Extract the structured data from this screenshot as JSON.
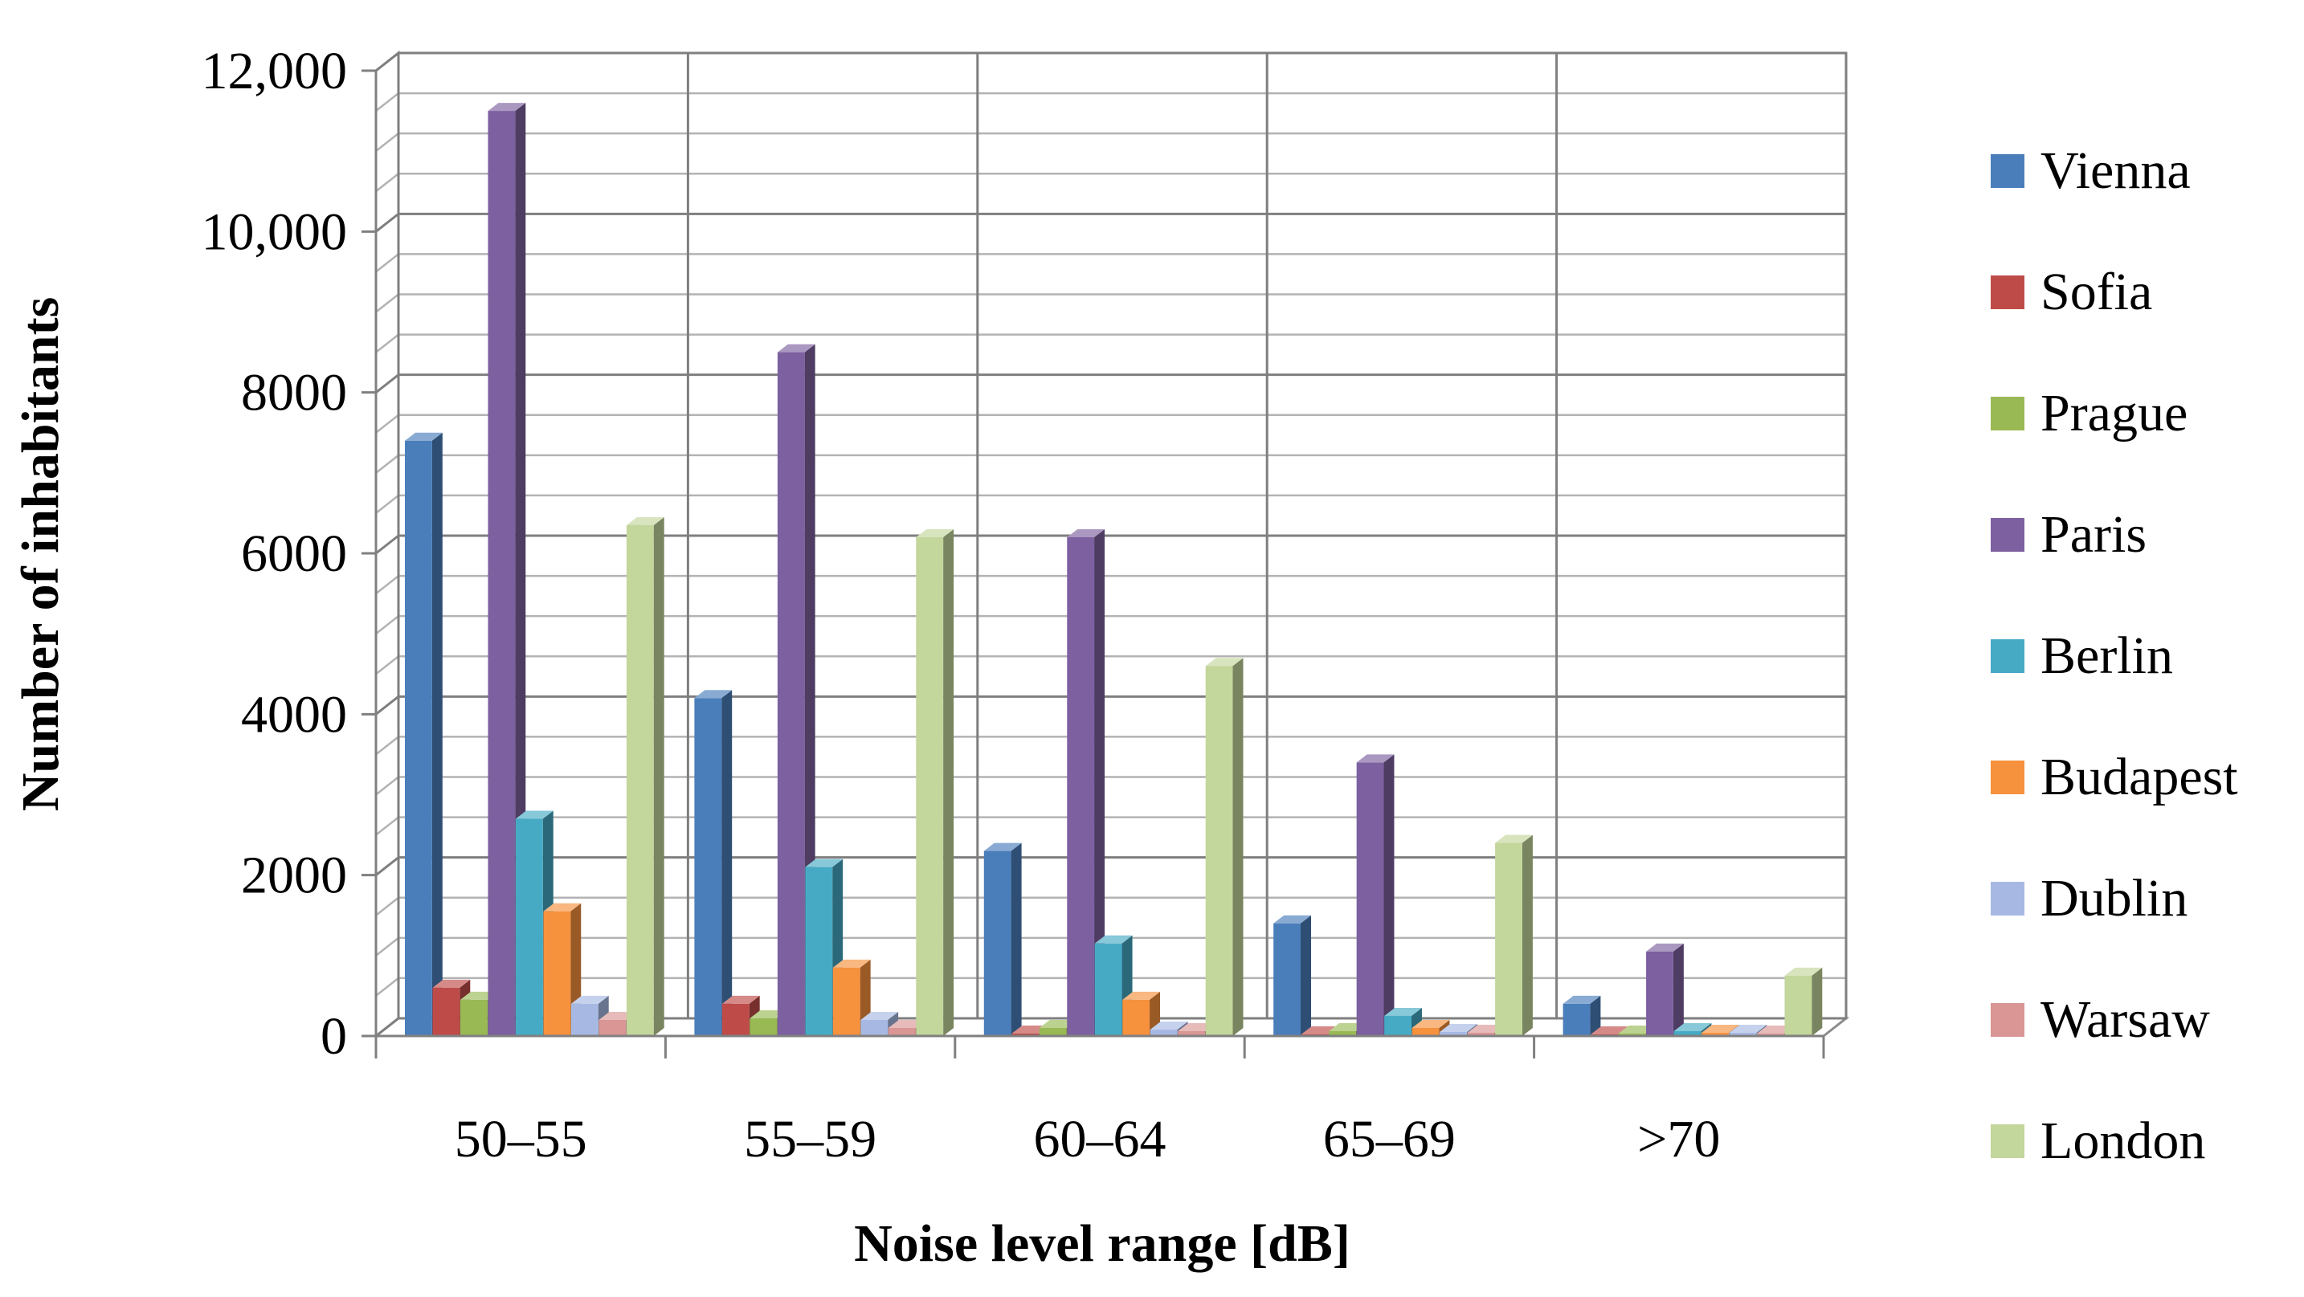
{
  "chart_data": {
    "type": "bar",
    "title": "",
    "xlabel": "Noise level range [dB]",
    "ylabel": "Number of inhabitants",
    "categories": [
      "50–55",
      "55–59",
      "60–64",
      "65–69",
      ">70"
    ],
    "ylim": [
      0,
      12000
    ],
    "yticks": [
      {
        "value": 0,
        "label": "0"
      },
      {
        "value": 2000,
        "label": "2000"
      },
      {
        "value": 4000,
        "label": "4000"
      },
      {
        "value": 6000,
        "label": "6000"
      },
      {
        "value": 8000,
        "label": "8000"
      },
      {
        "value": 10000,
        "label": "10,000"
      },
      {
        "value": 12000,
        "label": "12,000"
      }
    ],
    "grid": true,
    "style": "3d-clustered-column",
    "legend_position": "right",
    "series": [
      {
        "name": "Vienna",
        "color": "#4A7EBB",
        "values": [
          7400,
          4200,
          2300,
          1400,
          400
        ]
      },
      {
        "name": "Sofia",
        "color": "#BE4B48",
        "values": [
          600,
          400,
          30,
          20,
          20
        ]
      },
      {
        "name": "Prague",
        "color": "#98B954",
        "values": [
          450,
          220,
          100,
          60,
          30
        ]
      },
      {
        "name": "Paris",
        "color": "#7D60A0",
        "values": [
          11500,
          8500,
          6200,
          3400,
          1050
        ]
      },
      {
        "name": "Berlin",
        "color": "#46AAC5",
        "values": [
          2700,
          2100,
          1150,
          250,
          60
        ]
      },
      {
        "name": "Budapest",
        "color": "#F6913D",
        "values": [
          1550,
          850,
          450,
          100,
          40
        ]
      },
      {
        "name": "Dublin",
        "color": "#A7B9E3",
        "values": [
          400,
          200,
          80,
          50,
          40
        ]
      },
      {
        "name": "Warsaw",
        "color": "#D99694",
        "values": [
          200,
          100,
          60,
          40,
          30
        ]
      },
      {
        "name": "London",
        "color": "#C3D69B",
        "values": [
          6350,
          6200,
          4600,
          2400,
          750
        ]
      }
    ]
  }
}
